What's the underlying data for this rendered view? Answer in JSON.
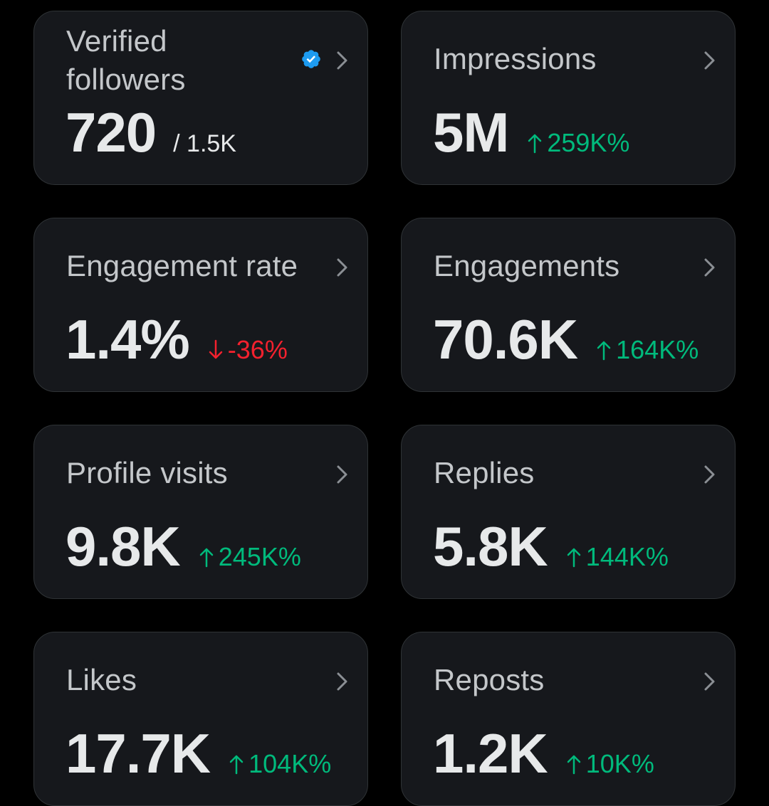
{
  "colors": {
    "background": "#000000",
    "card": "#16181c",
    "border": "#2f3336",
    "up": "#00ba7c",
    "down": "#f4212e",
    "verified": "#1d9bf0"
  },
  "cards": [
    {
      "title": "Verified followers",
      "value": "720",
      "sub": "/ 1.5K",
      "icon": "verified-badge-icon"
    },
    {
      "title": "Impressions",
      "value": "5M",
      "change": "259K%",
      "direction": "up"
    },
    {
      "title": "Engagement rate",
      "value": "1.4%",
      "change": "-36%",
      "direction": "down"
    },
    {
      "title": "Engagements",
      "value": "70.6K",
      "change": "164K%",
      "direction": "up"
    },
    {
      "title": "Profile visits",
      "value": "9.8K",
      "change": "245K%",
      "direction": "up"
    },
    {
      "title": "Replies",
      "value": "5.8K",
      "change": "144K%",
      "direction": "up"
    },
    {
      "title": "Likes",
      "value": "17.7K",
      "change": "104K%",
      "direction": "up"
    },
    {
      "title": "Reposts",
      "value": "1.2K",
      "change": "10K%",
      "direction": "up"
    }
  ]
}
